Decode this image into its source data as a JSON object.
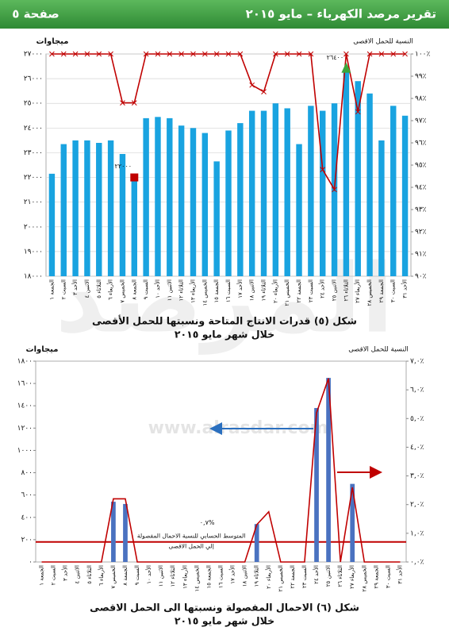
{
  "header": {
    "title": "تقرير مرصد الكهرباء – مايو ٢٠١٥",
    "page": "صفحة ٥"
  },
  "watermark": {
    "text": "المرصد",
    "url": "www.alrasdar.com"
  },
  "chart_data": [
    {
      "type": "bar",
      "title": "شكل (٥) قدرات الانتاج المتاحة ونسبتها للحمل الأقصى",
      "subtitle": "خلال شهر مايو ٢٠١٥",
      "y_label": "ميجاوات",
      "y2_label": "النسبة للحمل الاقصى",
      "grid": true,
      "categories": [
        "الجمعة ١",
        "السبت ٢",
        "الأحد ٣",
        "الاثنين ٤",
        "الثلاثاء ٥",
        "الأربعاء ٦",
        "الخميس ٧",
        "الجمعة ٨",
        "السبت ٩",
        "الأحد ١٠",
        "الاثنين ١١",
        "الثلاثاء ١٢",
        "الأربعاء ١٣",
        "الخميس ١٤",
        "الجمعة ١٥",
        "السبت ١٦",
        "الأحد ١٧",
        "الاثنين ١٨",
        "الثلاثاء ١٩",
        "الأربعاء ٢٠",
        "الخميس ٢١",
        "الجمعة ٢٢",
        "السبت ٢٣",
        "الأحد ٢٤",
        "الاثنين ٢٥",
        "الثلاثاء ٢٦",
        "الأربعاء ٢٧",
        "الخميس ٢٨",
        "الجمعة ٢٩",
        "السبت ٣٠",
        "الأحد ٣١"
      ],
      "series": [
        {
          "type": "bar",
          "color": "#19a3e0",
          "values": [
            22150,
            23350,
            23500,
            23500,
            23400,
            23500,
            22950,
            22000,
            24400,
            24450,
            24400,
            24100,
            24000,
            23800,
            22650,
            23900,
            24200,
            24700,
            24700,
            25000,
            24800,
            23350,
            24900,
            24700,
            25000,
            26400,
            25900,
            25400,
            23500,
            24900,
            24500
          ]
        },
        {
          "type": "line",
          "color": "#c00000",
          "marker": "x",
          "axis": "y2",
          "values": [
            100,
            100,
            100,
            100,
            100,
            100,
            97.8,
            97.8,
            100,
            100,
            100,
            100,
            100,
            100,
            100,
            100,
            100,
            98.6,
            98.3,
            100,
            100,
            100,
            100,
            94.8,
            93.9,
            100,
            97.4,
            100,
            100,
            100,
            100
          ]
        }
      ],
      "markers": [
        {
          "value": 22000,
          "label": "٢٢٠٠٠",
          "shape": "square",
          "color": "#c00000"
        },
        {
          "value": 26400,
          "label": "٢٦٤٠٠",
          "shape": "triangle",
          "color": "#3aa63a"
        }
      ],
      "ylim": [
        18000,
        27000
      ],
      "yticks": [
        {
          "value": 18000,
          "label": "١٨٠٠٠"
        },
        {
          "value": 19000,
          "label": "١٩٠٠٠"
        },
        {
          "value": 20000,
          "label": "٢٠٠٠٠"
        },
        {
          "value": 21000,
          "label": "٢١٠٠٠"
        },
        {
          "value": 22000,
          "label": "٢٢٠٠٠"
        },
        {
          "value": 23000,
          "label": "٢٣٠٠٠"
        },
        {
          "value": 24000,
          "label": "٢٤٠٠٠"
        },
        {
          "value": 25000,
          "label": "٢٥٠٠٠"
        },
        {
          "value": 26000,
          "label": "٢٦٠٠٠"
        },
        {
          "value": 27000,
          "label": "٢٧٠٠٠"
        }
      ],
      "y2lim": [
        90,
        100
      ],
      "y2ticks": [
        {
          "value": 90,
          "label": "٩٠٪"
        },
        {
          "value": 91,
          "label": "٩١٪"
        },
        {
          "value": 92,
          "label": "٩٢٪"
        },
        {
          "value": 93,
          "label": "٩٣٪"
        },
        {
          "value": 94,
          "label": "٩٤٪"
        },
        {
          "value": 95,
          "label": "٩٥٪"
        },
        {
          "value": 96,
          "label": "٩٦٪"
        },
        {
          "value": 97,
          "label": "٩٧٪"
        },
        {
          "value": 98,
          "label": "٩٨٪"
        },
        {
          "value": 99,
          "label": "٩٩٪"
        },
        {
          "value": 100,
          "label": "١٠٠٪"
        }
      ]
    },
    {
      "type": "bar",
      "title": "شكل (٦) الاحمال المفصولة ونسبتها الى الحمل الاقصى",
      "subtitle": "خلال شهر مايو ٢٠١٥",
      "y_label": "ميجاوات",
      "y2_label": "النسبة للحمل الاقصى",
      "grid": false,
      "categories": [
        "الجمعة ١",
        "السبت ٢",
        "الأحد ٣",
        "الاثنين ٤",
        "الثلاثاء ٥",
        "الأربعاء ٦",
        "الخميس ٧",
        "الجمعة ٨",
        "السبت ٩",
        "الأحد ١٠",
        "الاثنين ١١",
        "الثلاثاء ١٢",
        "الأربعاء ١٣",
        "الخميس ١٤",
        "الجمعة ١٥",
        "السبت ١٦",
        "الأحد ١٧",
        "الاثنين ١٨",
        "الثلاثاء ١٩",
        "الأربعاء ٢٠",
        "الخميس ٢١",
        "الجمعة ٢٢",
        "السبت ٢٣",
        "الأحد ٢٤",
        "الاثنين ٢٥",
        "الثلاثاء ٢٦",
        "الأربعاء ٢٧",
        "الخميس ٢٨",
        "الجمعة ٢٩",
        "السبت ٣٠",
        "الأحد ٣١"
      ],
      "series": [
        {
          "type": "bar",
          "color": "#4a72c0",
          "values": [
            0,
            0,
            0,
            0,
            0,
            0,
            540,
            520,
            0,
            0,
            0,
            0,
            0,
            0,
            0,
            0,
            0,
            0,
            340,
            0,
            0,
            0,
            0,
            1380,
            1650,
            0,
            700,
            0,
            0,
            0,
            0
          ]
        },
        {
          "type": "line",
          "color": "#c00000",
          "axis": "y2",
          "values": [
            0,
            0,
            0,
            0,
            0,
            0,
            2.2,
            2.2,
            0,
            0,
            0,
            0,
            0,
            0,
            0,
            0,
            0,
            0,
            1.3,
            1.75,
            0,
            0,
            0,
            5.2,
            6.4,
            0,
            2.6,
            0,
            0,
            0,
            0
          ]
        }
      ],
      "reference_line": {
        "value": 0.7,
        "axis": "y2",
        "color": "#c00000",
        "label": "٠,٧%",
        "text": [
          "المتوسط الحسابي للنسبة الاحمال المفصولة",
          "إلي الحمل الاقصى"
        ]
      },
      "ylim": [
        0,
        1800
      ],
      "yticks": [
        {
          "value": 0,
          "label": "٠"
        },
        {
          "value": 200,
          "label": "٢٠٠"
        },
        {
          "value": 400,
          "label": "٤٠٠"
        },
        {
          "value": 600,
          "label": "٦٠٠"
        },
        {
          "value": 800,
          "label": "٨٠٠"
        },
        {
          "value": 1000,
          "label": "١٠٠٠"
        },
        {
          "value": 1200,
          "label": "١٢٠٠"
        },
        {
          "value": 1400,
          "label": "١٤٠٠"
        },
        {
          "value": 1600,
          "label": "١٦٠٠"
        },
        {
          "value": 1800,
          "label": "١٨٠٠"
        }
      ],
      "y2lim": [
        0,
        7
      ],
      "y2ticks": [
        {
          "value": 0,
          "label": "٠,٠٪"
        },
        {
          "value": 1,
          "label": "١,٠٪"
        },
        {
          "value": 2,
          "label": "٢,٠٪"
        },
        {
          "value": 3,
          "label": "٣,٠٪"
        },
        {
          "value": 4,
          "label": "٤,٠٪"
        },
        {
          "value": 5,
          "label": "٥,٠٪"
        },
        {
          "value": 6,
          "label": "٦,٠٪"
        },
        {
          "value": 7,
          "label": "٧,٠٪"
        }
      ]
    }
  ]
}
